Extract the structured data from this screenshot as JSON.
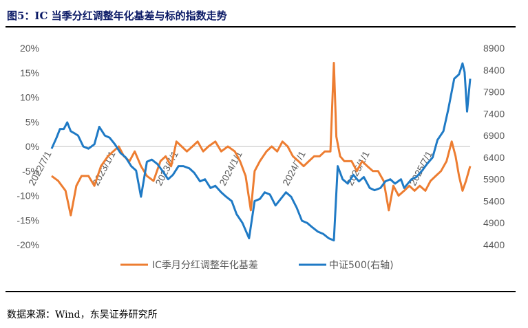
{
  "header": {
    "title": "图5：IC 当季分红调整年化基差与标的指数走势"
  },
  "footer": {
    "source": "数据来源：Wind，东吴证券研究所"
  },
  "chart_data": {
    "type": "line",
    "title": "图5：IC 当季分红调整年化基差与标的指数走势",
    "x_range": [
      "2022-07-01",
      "2025-10-17"
    ],
    "x_ticks": [
      "2022/7/1",
      "2023/1/1",
      "2023/7/1",
      "2024/1/1",
      "2024/7/1",
      "2025/1/1",
      "2025/7/1"
    ],
    "x_tick_dates": [
      "2022-07-01",
      "2023-01-01",
      "2023-07-01",
      "2024-01-01",
      "2024-07-01",
      "2025-01-01",
      "2025-07-01"
    ],
    "y_left": {
      "min": -0.2,
      "max": 0.2,
      "ticks": [
        "20%",
        "15%",
        "10%",
        "5%",
        "0%",
        "-5%",
        "-10%",
        "-15%",
        "-20%"
      ],
      "values": [
        0.2,
        0.15,
        0.1,
        0.05,
        0,
        -0.05,
        -0.1,
        -0.15,
        -0.2
      ]
    },
    "y_right": {
      "min": 4400,
      "max": 8900,
      "ticks": [
        "8900",
        "8400",
        "7900",
        "7400",
        "6900",
        "6400",
        "5900",
        "5400",
        "4900",
        "4400"
      ],
      "values": [
        8900,
        8400,
        7900,
        7400,
        6900,
        6400,
        5900,
        5400,
        4900,
        4400
      ]
    },
    "grid": false,
    "legend_position": "bottom",
    "series": [
      {
        "name": "IC季月分红调整年化基差",
        "axis": "left",
        "color": "#ed7d31",
        "points": [
          [
            "2022-07-01",
            -0.06
          ],
          [
            "2022-07-20",
            -0.07
          ],
          [
            "2022-08-10",
            -0.09
          ],
          [
            "2022-08-25",
            -0.14
          ],
          [
            "2022-09-10",
            -0.08
          ],
          [
            "2022-09-25",
            -0.06
          ],
          [
            "2022-10-15",
            -0.06
          ],
          [
            "2022-11-01",
            -0.08
          ],
          [
            "2022-11-20",
            -0.04
          ],
          [
            "2022-12-10",
            -0.02
          ],
          [
            "2022-12-25",
            -0.01
          ],
          [
            "2023-01-10",
            0.0
          ],
          [
            "2023-01-25",
            -0.02
          ],
          [
            "2023-02-10",
            -0.03
          ],
          [
            "2023-02-25",
            -0.01
          ],
          [
            "2023-03-15",
            -0.04
          ],
          [
            "2023-04-01",
            -0.06
          ],
          [
            "2023-04-20",
            -0.07
          ],
          [
            "2023-05-10",
            -0.03
          ],
          [
            "2023-05-25",
            -0.02
          ],
          [
            "2023-06-10",
            -0.04
          ],
          [
            "2023-06-25",
            0.01
          ],
          [
            "2023-07-10",
            0.0
          ],
          [
            "2023-07-25",
            -0.01
          ],
          [
            "2023-08-10",
            0.0
          ],
          [
            "2023-08-25",
            0.01
          ],
          [
            "2023-09-10",
            -0.01
          ],
          [
            "2023-09-25",
            0.0
          ],
          [
            "2023-10-15",
            0.01
          ],
          [
            "2023-11-01",
            -0.01
          ],
          [
            "2023-11-20",
            0.0
          ],
          [
            "2023-12-10",
            -0.01
          ],
          [
            "2023-12-25",
            -0.03
          ],
          [
            "2024-01-10",
            -0.06
          ],
          [
            "2024-01-25",
            -0.13
          ],
          [
            "2024-02-05",
            -0.05
          ],
          [
            "2024-02-20",
            -0.03
          ],
          [
            "2024-03-10",
            -0.01
          ],
          [
            "2024-03-25",
            0.0
          ],
          [
            "2024-04-10",
            -0.01
          ],
          [
            "2024-04-25",
            0.01
          ],
          [
            "2024-05-10",
            0.0
          ],
          [
            "2024-05-25",
            -0.02
          ],
          [
            "2024-06-10",
            -0.03
          ],
          [
            "2024-06-25",
            -0.04
          ],
          [
            "2024-07-10",
            -0.03
          ],
          [
            "2024-07-25",
            -0.02
          ],
          [
            "2024-08-10",
            -0.02
          ],
          [
            "2024-08-25",
            -0.01
          ],
          [
            "2024-09-10",
            -0.01
          ],
          [
            "2024-09-20",
            0.17
          ],
          [
            "2024-09-27",
            0.02
          ],
          [
            "2024-10-08",
            -0.02
          ],
          [
            "2024-10-20",
            -0.03
          ],
          [
            "2024-11-10",
            -0.03
          ],
          [
            "2024-11-25",
            -0.05
          ],
          [
            "2024-12-10",
            -0.03
          ],
          [
            "2024-12-25",
            -0.04
          ],
          [
            "2025-01-10",
            -0.05
          ],
          [
            "2025-01-25",
            -0.05
          ],
          [
            "2025-02-10",
            -0.07
          ],
          [
            "2025-02-25",
            -0.13
          ],
          [
            "2025-03-10",
            -0.08
          ],
          [
            "2025-03-25",
            -0.1
          ],
          [
            "2025-04-10",
            -0.09
          ],
          [
            "2025-04-25",
            -0.08
          ],
          [
            "2025-05-10",
            -0.09
          ],
          [
            "2025-05-25",
            -0.08
          ],
          [
            "2025-06-10",
            -0.09
          ],
          [
            "2025-06-25",
            -0.07
          ],
          [
            "2025-07-10",
            -0.06
          ],
          [
            "2025-07-25",
            -0.05
          ],
          [
            "2025-08-10",
            -0.03
          ],
          [
            "2025-08-25",
            0.01
          ],
          [
            "2025-09-05",
            -0.02
          ],
          [
            "2025-09-15",
            -0.06
          ],
          [
            "2025-09-25",
            -0.09
          ],
          [
            "2025-10-05",
            -0.07
          ],
          [
            "2025-10-17",
            -0.04
          ]
        ]
      },
      {
        "name": "中证500(右轴)",
        "axis": "right",
        "color": "#1f7ac5",
        "points": [
          [
            "2022-07-01",
            6600
          ],
          [
            "2022-07-15",
            6850
          ],
          [
            "2022-07-25",
            7050
          ],
          [
            "2022-08-05",
            7050
          ],
          [
            "2022-08-15",
            7200
          ],
          [
            "2022-08-25",
            7000
          ],
          [
            "2022-09-05",
            6950
          ],
          [
            "2022-09-15",
            6900
          ],
          [
            "2022-09-30",
            6650
          ],
          [
            "2022-10-15",
            6600
          ],
          [
            "2022-11-01",
            6700
          ],
          [
            "2022-11-15",
            7100
          ],
          [
            "2022-12-01",
            6900
          ],
          [
            "2022-12-15",
            6850
          ],
          [
            "2022-12-30",
            6700
          ],
          [
            "2023-01-15",
            6500
          ],
          [
            "2023-01-30",
            6400
          ],
          [
            "2023-02-15",
            6200
          ],
          [
            "2023-03-01",
            6100
          ],
          [
            "2023-03-15",
            5500
          ],
          [
            "2023-04-01",
            6300
          ],
          [
            "2023-04-15",
            6350
          ],
          [
            "2023-05-01",
            6250
          ],
          [
            "2023-05-15",
            6100
          ],
          [
            "2023-06-01",
            5900
          ],
          [
            "2023-06-15",
            6000
          ],
          [
            "2023-07-01",
            6200
          ],
          [
            "2023-07-15",
            6200
          ],
          [
            "2023-08-01",
            6150
          ],
          [
            "2023-08-15",
            6050
          ],
          [
            "2023-09-01",
            5850
          ],
          [
            "2023-09-15",
            5900
          ],
          [
            "2023-10-01",
            5700
          ],
          [
            "2023-10-15",
            5750
          ],
          [
            "2023-11-01",
            5600
          ],
          [
            "2023-11-15",
            5500
          ],
          [
            "2023-12-01",
            5400
          ],
          [
            "2023-12-15",
            5100
          ],
          [
            "2024-01-01",
            4900
          ],
          [
            "2024-01-20",
            4550
          ],
          [
            "2024-02-05",
            5400
          ],
          [
            "2024-02-20",
            5450
          ],
          [
            "2024-03-05",
            5600
          ],
          [
            "2024-03-20",
            5550
          ],
          [
            "2024-04-05",
            5300
          ],
          [
            "2024-04-20",
            5450
          ],
          [
            "2024-05-05",
            5600
          ],
          [
            "2024-05-20",
            5500
          ],
          [
            "2024-06-05",
            5250
          ],
          [
            "2024-06-20",
            4950
          ],
          [
            "2024-07-05",
            4900
          ],
          [
            "2024-07-20",
            4800
          ],
          [
            "2024-08-05",
            4700
          ],
          [
            "2024-08-20",
            4650
          ],
          [
            "2024-09-05",
            4550
          ],
          [
            "2024-09-20",
            4500
          ],
          [
            "2024-10-01",
            6200
          ],
          [
            "2024-10-15",
            5900
          ],
          [
            "2024-10-30",
            5800
          ],
          [
            "2024-11-15",
            6000
          ],
          [
            "2024-12-01",
            5850
          ],
          [
            "2024-12-15",
            5950
          ],
          [
            "2025-01-01",
            5700
          ],
          [
            "2025-01-15",
            5650
          ],
          [
            "2025-02-01",
            5700
          ],
          [
            "2025-02-15",
            5850
          ],
          [
            "2025-03-01",
            5900
          ],
          [
            "2025-03-15",
            5800
          ],
          [
            "2025-04-01",
            5900
          ],
          [
            "2025-04-10",
            5700
          ],
          [
            "2025-05-01",
            5900
          ],
          [
            "2025-05-15",
            5950
          ],
          [
            "2025-06-01",
            6100
          ],
          [
            "2025-06-15",
            6250
          ],
          [
            "2025-07-01",
            6400
          ],
          [
            "2025-07-15",
            6800
          ],
          [
            "2025-08-01",
            7000
          ],
          [
            "2025-08-15",
            7500
          ],
          [
            "2025-09-01",
            8200
          ],
          [
            "2025-09-15",
            8300
          ],
          [
            "2025-09-25",
            8550
          ],
          [
            "2025-10-01",
            8350
          ],
          [
            "2025-10-08",
            7450
          ],
          [
            "2025-10-17",
            8200
          ]
        ]
      }
    ]
  }
}
